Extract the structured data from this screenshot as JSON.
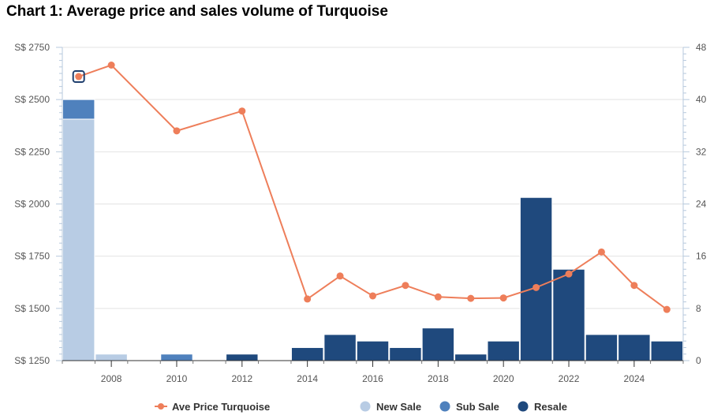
{
  "title": "Chart 1: Average price and sales volume of Turquoise",
  "chart_data": {
    "type": "bar",
    "title": "Chart 1: Average price and sales volume of Turquoise",
    "years": [
      2007,
      2008,
      2009,
      2010,
      2011,
      2012,
      2013,
      2014,
      2015,
      2016,
      2017,
      2018,
      2019,
      2020,
      2021,
      2022,
      2023,
      2024,
      2025
    ],
    "x_tick_labels": [
      "2008",
      "2010",
      "2012",
      "2014",
      "2016",
      "2018",
      "2020",
      "2022",
      "2024"
    ],
    "y_left_tick_labels": [
      "S$ 1250",
      "S$ 1500",
      "S$ 1750",
      "S$ 2000",
      "S$ 2250",
      "S$ 2500",
      "S$ 2750"
    ],
    "y_right_tick_labels": [
      "0",
      "8",
      "16",
      "24",
      "32",
      "40",
      "48"
    ],
    "y_left_range": [
      1250,
      2750
    ],
    "y_right_range": [
      0,
      48
    ],
    "stacked": true,
    "grid": true,
    "legend_position": "bottom",
    "series": [
      {
        "name": "New Sale",
        "axis": "right",
        "type": "bar",
        "color": "#b8cce4",
        "values": [
          37,
          1,
          0,
          0,
          0,
          0,
          0,
          0,
          0,
          0,
          0,
          0,
          0,
          0,
          0,
          0,
          0,
          0,
          0
        ]
      },
      {
        "name": "Sub Sale",
        "axis": "right",
        "type": "bar",
        "color": "#4f81bd",
        "values": [
          3,
          0,
          0,
          1,
          0,
          0,
          0,
          0,
          0,
          0,
          0,
          0,
          0,
          0,
          0,
          0,
          0,
          0,
          0
        ]
      },
      {
        "name": "Resale",
        "axis": "right",
        "type": "bar",
        "color": "#1f497d",
        "values": [
          0,
          0,
          0,
          0,
          0,
          1,
          0,
          2,
          4,
          3,
          2,
          5,
          1,
          3,
          25,
          14,
          4,
          4,
          3
        ]
      },
      {
        "name": "Ave Price Turquoise",
        "axis": "left",
        "type": "line",
        "color": "#ee7e5a",
        "values": [
          2610,
          2665,
          null,
          2350,
          null,
          2445,
          null,
          1545,
          1655,
          1560,
          1610,
          1555,
          1548,
          1550,
          1600,
          1665,
          1770,
          1610,
          1495
        ]
      }
    ],
    "highlighted_point": {
      "series": "Ave Price Turquoise",
      "x": 2007
    }
  }
}
